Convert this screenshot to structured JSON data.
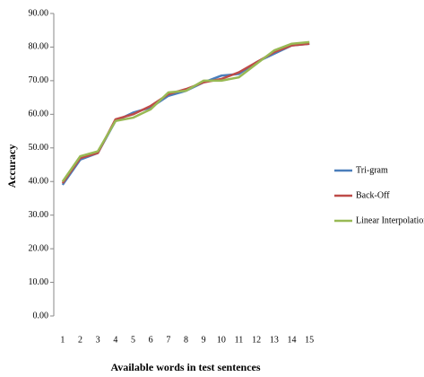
{
  "chart_data": {
    "type": "line",
    "x_label": "Available words in test sentences",
    "y_label": "Accuracy",
    "x": [
      1,
      2,
      3,
      4,
      5,
      6,
      7,
      8,
      9,
      10,
      11,
      12,
      13,
      14,
      15
    ],
    "xlim": [
      0.5,
      15.5
    ],
    "xticks": [
      1,
      2,
      3,
      4,
      5,
      6,
      7,
      8,
      9,
      10,
      11,
      12,
      13,
      14,
      15
    ],
    "ylim": [
      0,
      90
    ],
    "yticks": [
      {
        "value": 0,
        "label": "0.00"
      },
      {
        "value": 10,
        "label": "10.00"
      },
      {
        "value": 20,
        "label": "20.00"
      },
      {
        "value": 30,
        "label": "30.00"
      },
      {
        "value": 40,
        "label": "40.00"
      },
      {
        "value": 50,
        "label": "50.00"
      },
      {
        "value": 60,
        "label": "60.00"
      },
      {
        "value": 70,
        "label": "70.00"
      },
      {
        "value": 80,
        "label": "80.00"
      },
      {
        "value": 90,
        "label": "90.00"
      }
    ],
    "legend": "right",
    "series": [
      {
        "name": "Tri-gram",
        "color": "#4a7ebb",
        "values": [
          39,
          46.5,
          48.5,
          58,
          60.5,
          62,
          65.5,
          67,
          69.5,
          71.5,
          72,
          75.5,
          78,
          80.5,
          81
        ]
      },
      {
        "name": "Back-Off",
        "color": "#be4b48",
        "values": [
          39.5,
          47,
          48.5,
          58.5,
          60,
          62.5,
          66,
          67.5,
          69.5,
          70.5,
          72.5,
          75.5,
          78.5,
          80.5,
          81
        ]
      },
      {
        "name": "Linear Interpolation",
        "color": "#98b954",
        "values": [
          40,
          47.5,
          49,
          58,
          59,
          61.5,
          66.5,
          67,
          70,
          70,
          71,
          75,
          79,
          81,
          81.5
        ]
      }
    ]
  }
}
